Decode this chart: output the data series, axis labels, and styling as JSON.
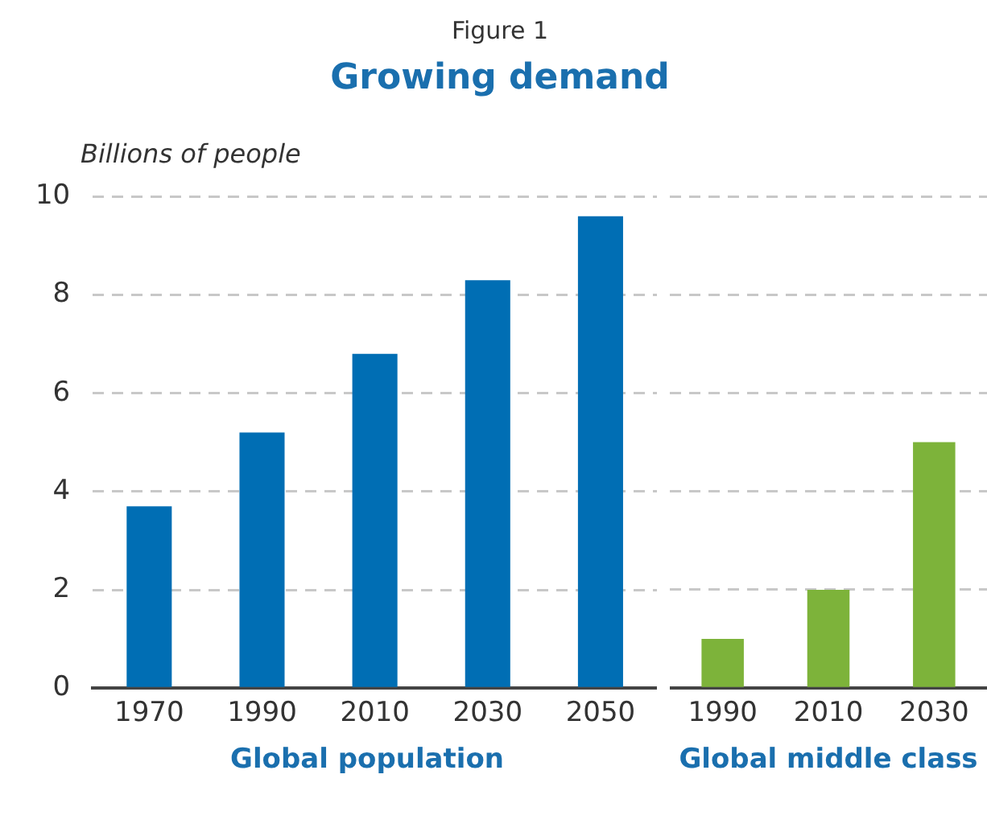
{
  "chart_data": [
    {
      "type": "bar",
      "title": "Growing demand",
      "annotations": [
        "Figure 1"
      ],
      "ylabel": "Billions of people",
      "xlabel": "Global population",
      "categories": [
        "1970",
        "1990",
        "2010",
        "2030",
        "2050"
      ],
      "values": [
        3.7,
        5.2,
        6.8,
        8.3,
        9.6
      ],
      "color": "#006eb4",
      "ylim": [
        0,
        10
      ],
      "yticks": [
        0,
        2,
        4,
        6,
        8,
        10
      ],
      "grid": "y"
    },
    {
      "type": "bar",
      "xlabel": "Global middle class",
      "categories": [
        "1990",
        "2010",
        "2030"
      ],
      "values": [
        1.0,
        2.0,
        5.0
      ],
      "color": "#7db33a",
      "ylim": [
        0,
        10
      ],
      "yticks": [
        0,
        2,
        4,
        6,
        8,
        10
      ],
      "grid": "y",
      "tick_labels": "x"
    }
  ]
}
